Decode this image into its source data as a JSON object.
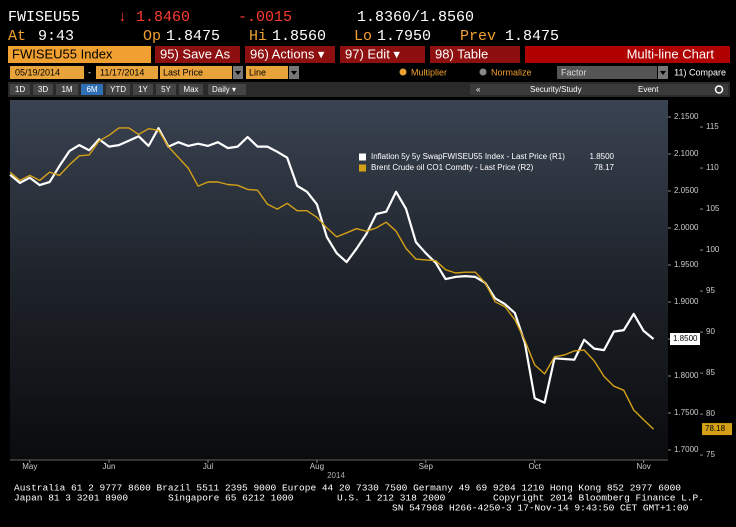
{
  "header": {
    "ticker": "FWISEU55",
    "change_arrow_price": "↓ 1.8460",
    "change": "-.0015",
    "bid_ask": "1.8360/1.8560",
    "time_label": "At",
    "time": "9:43",
    "open_label": "Op",
    "open": "1.8475",
    "high_label": "Hi",
    "high": "1.8560",
    "low_label": "Lo",
    "low": "1.7950",
    "prev_label": "Prev",
    "prev": "1.8475"
  },
  "toolbar": {
    "security": "FWISEU55 Index",
    "buttons": [
      "95) Save As",
      "96) Actions ▾",
      "97) Edit ▾",
      "98) Table"
    ],
    "panel": "Multi-line Chart"
  },
  "settings": {
    "start": "05/19/2014",
    "separator": "-",
    "end": "11/17/2014",
    "field": "Last Price",
    "style": "Line",
    "multiplier": "Multiplier",
    "normalize": "Normalize",
    "factor": "Factor",
    "compare": "11) Compare",
    "periods": [
      "1D",
      "3D",
      "1M",
      "6M",
      "YTD",
      "1Y",
      "5Y",
      "Max"
    ],
    "selected_period": 3,
    "frequency": "Daily ▾",
    "back": "«",
    "study": "Security/Study",
    "event": "Event"
  },
  "chart_data": {
    "type": "line",
    "categories": [
      null,
      null,
      "May",
      null,
      null,
      null,
      null,
      null,
      null,
      null,
      "Jun",
      null,
      null,
      null,
      null,
      null,
      null,
      null,
      null,
      null,
      "Jul",
      null,
      null,
      null,
      null,
      null,
      null,
      null,
      null,
      null,
      null,
      "Aug",
      null,
      null,
      null,
      null,
      null,
      null,
      null,
      null,
      null,
      null,
      "Sep",
      null,
      null,
      null,
      null,
      null,
      null,
      null,
      null,
      null,
      null,
      "Oct",
      null,
      null,
      null,
      null,
      null,
      null,
      null,
      null,
      null,
      null,
      "Nov",
      null
    ],
    "x_note": "2014",
    "series": [
      {
        "name": "Inflation 5y 5y SwapFWISEU55 Index - Last Price (R1)",
        "color": "#ffffff",
        "legend_value": "1.8500",
        "axis_tag": "1.8500",
        "values": [
          2.072,
          2.061,
          2.068,
          2.058,
          2.062,
          2.084,
          2.104,
          2.112,
          2.105,
          2.12,
          2.11,
          2.112,
          2.118,
          2.124,
          2.111,
          2.135,
          2.11,
          2.116,
          2.111,
          2.114,
          2.111,
          2.116,
          2.108,
          2.11,
          2.123,
          2.11,
          2.11,
          2.103,
          2.095,
          2.057,
          2.049,
          2.032,
          1.988,
          1.966,
          1.954,
          1.972,
          1.992,
          2.019,
          2.022,
          2.049,
          2.026,
          1.981,
          1.966,
          1.953,
          1.931,
          1.934,
          1.935,
          1.934,
          1.926,
          1.905,
          1.897,
          1.885,
          1.845,
          1.77,
          1.764,
          1.824,
          1.823,
          1.822,
          1.849,
          1.837,
          1.835,
          1.86,
          1.862,
          1.884,
          1.861,
          1.85
        ]
      },
      {
        "name": "Brent Crude oil CO1 Comdty - Last Price (R2)",
        "color": "#d4a017",
        "axis": "y2",
        "legend_value": "78.17",
        "axis_tag": "78.18",
        "values": [
          109.5,
          108.5,
          109.1,
          108.5,
          109.5,
          109.1,
          110.4,
          111.5,
          111.6,
          113.3,
          114.0,
          114.9,
          114.9,
          114.1,
          114.8,
          114.6,
          112.6,
          111.3,
          110.0,
          107.8,
          108.3,
          108.3,
          108.0,
          107.9,
          107.4,
          107.3,
          105.6,
          105.0,
          105.7,
          104.8,
          104.8,
          104.0,
          102.7,
          101.6,
          102.1,
          102.6,
          102.3,
          102.7,
          103.4,
          102.3,
          100.2,
          98.9,
          98.8,
          98.7,
          97.6,
          97.2,
          97.3,
          97.3,
          96.0,
          93.7,
          93.1,
          91.5,
          89.0,
          86.0,
          84.9,
          87.0,
          87.2,
          87.7,
          87.8,
          86.5,
          84.6,
          83.4,
          82.9,
          80.5,
          79.3,
          78.17
        ]
      }
    ],
    "ylim": [
      1.6865,
      2.173
    ],
    "yticks": [
      {
        "value": 1.7,
        "label": "1.7000"
      },
      {
        "value": 1.75,
        "label": "1.7500"
      },
      {
        "value": 1.8,
        "label": "1.8000"
      },
      {
        "value": 1.85,
        "label": "1.8500"
      },
      {
        "value": 1.9,
        "label": "1.9000"
      },
      {
        "value": 1.95,
        "label": "1.9500"
      },
      {
        "value": 2.0,
        "label": "2.0000"
      },
      {
        "value": 2.05,
        "label": "2.0500"
      },
      {
        "value": 2.1,
        "label": "2.1000"
      },
      {
        "value": 2.15,
        "label": "2.1500"
      }
    ],
    "y2lim": [
      74.4,
      118.3
    ],
    "y2ticks": [
      75,
      80,
      85,
      90,
      95,
      100,
      105,
      110,
      115
    ],
    "grid": false,
    "legend": "top-right"
  },
  "footer": {
    "line1": "Australia 61 2 9777 8600 Brazil 5511 2395 9000 Europe 44 20 7330 7500 Germany 49 69 9204 1210 Hong Kong 852 2977 6000",
    "line2": [
      "Japan 81 3 3201 8900",
      "Singapore 65 6212 1000",
      "U.S. 1 212 318 2000",
      "Copyright 2014 Bloomberg Finance L.P."
    ],
    "line3": "SN 547968 H266-4250-3 17-Nov-14  9:43:50 CET  GMT+1:00"
  }
}
